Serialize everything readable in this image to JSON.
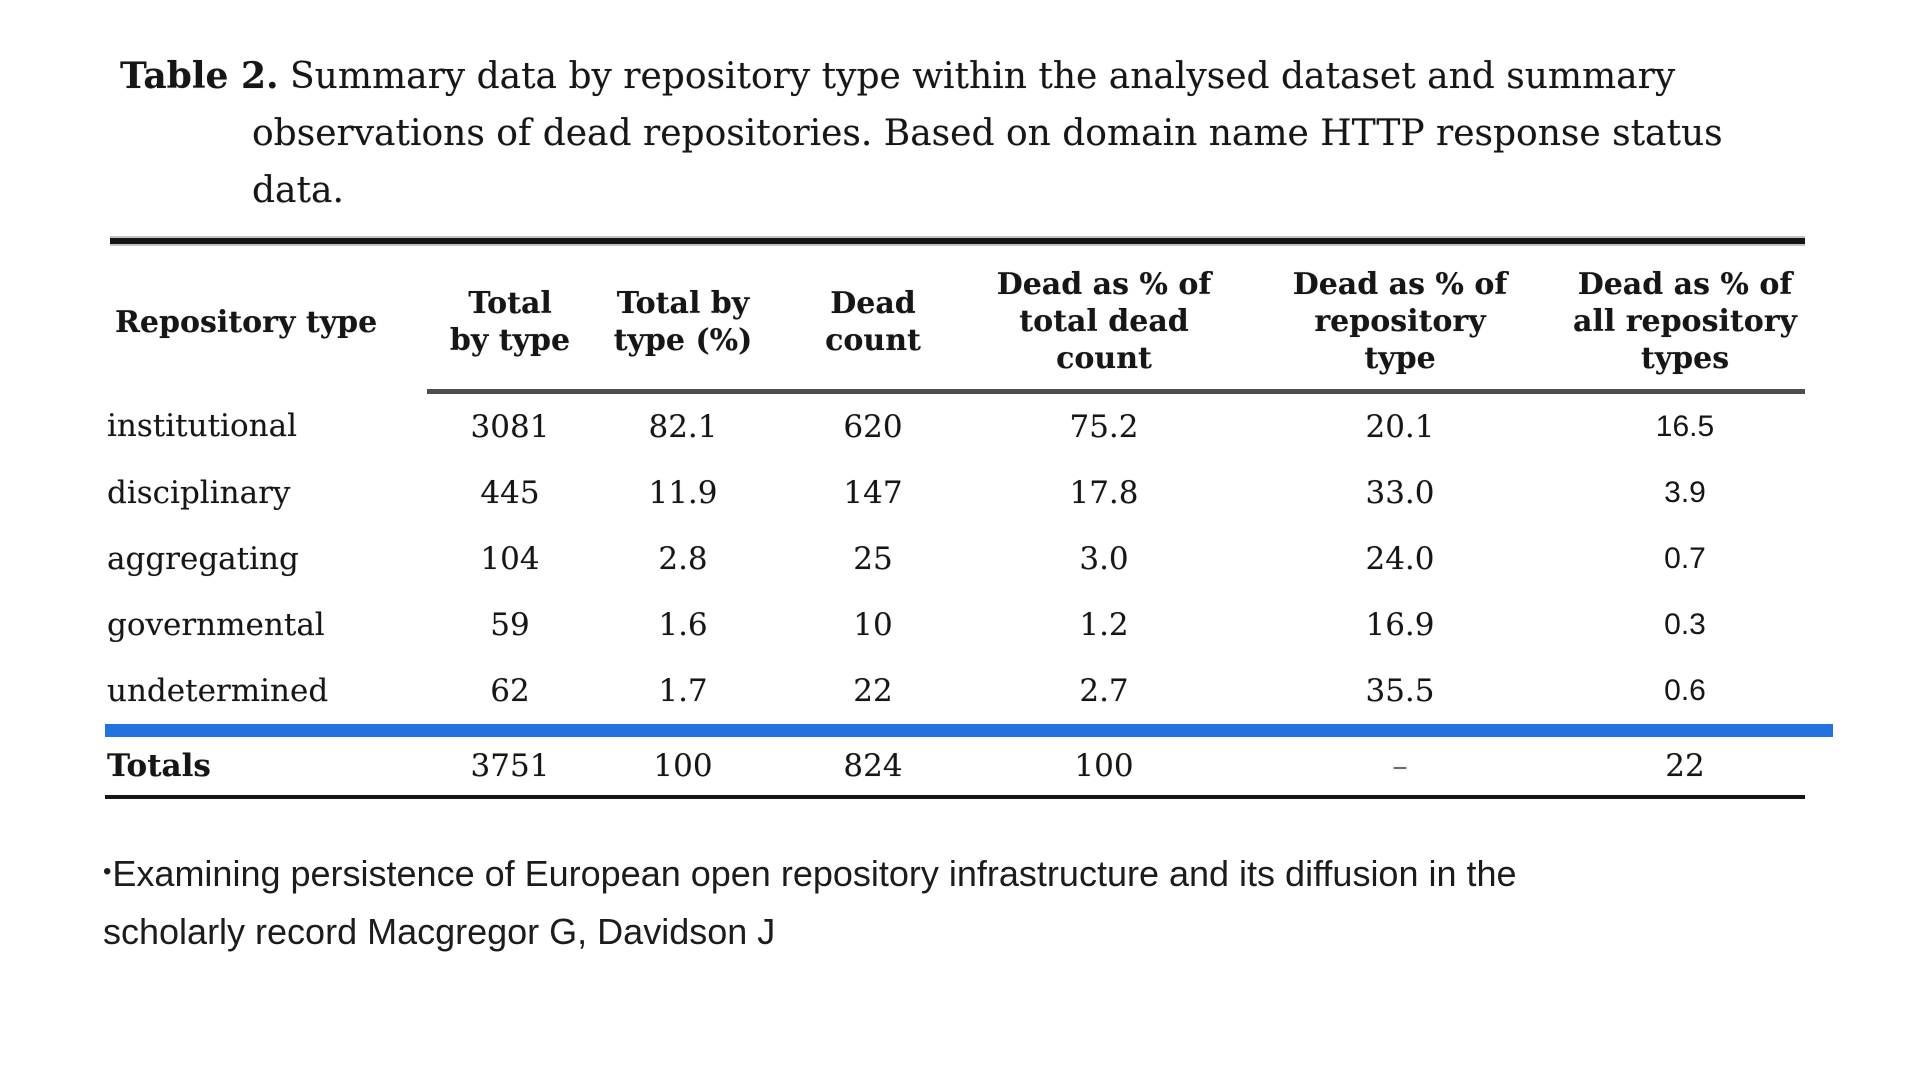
{
  "caption": {
    "label": "Table 2.",
    "line1": "Summary data by repository type within the analysed dataset and summary",
    "line2": "observations of dead repositories. Based on domain name HTTP response status",
    "line3": "data."
  },
  "table": {
    "accent_color": "#2273e0",
    "na_symbol": "–",
    "columns": [
      {
        "label": "Repository type",
        "lines": [
          "Repository type"
        ]
      },
      {
        "label": "Total by type",
        "lines": [
          "Total",
          "by type"
        ]
      },
      {
        "label": "Total by type (%)",
        "lines": [
          "Total by",
          "type (%)"
        ]
      },
      {
        "label": "Dead count",
        "lines": [
          "Dead",
          "count"
        ]
      },
      {
        "label": "Dead as % of total dead count",
        "lines": [
          "Dead as % of",
          "total dead",
          "count"
        ]
      },
      {
        "label": "Dead as % of repository type",
        "lines": [
          "Dead as % of",
          "repository",
          "type"
        ]
      },
      {
        "label": "Dead as % of all repository types",
        "lines": [
          "Dead as % of",
          "all repository",
          "types"
        ],
        "edited": true
      }
    ],
    "rows": [
      {
        "cells": [
          "institutional",
          "3081",
          "82.1",
          "620",
          "75.2",
          "20.1",
          "16.5"
        ]
      },
      {
        "cells": [
          "disciplinary",
          "445",
          "11.9",
          "147",
          "17.8",
          "33.0",
          "3.9"
        ]
      },
      {
        "cells": [
          "aggregating",
          "104",
          "2.8",
          "25",
          "3.0",
          "24.0",
          "0.7"
        ]
      },
      {
        "cells": [
          "governmental",
          "59",
          "1.6",
          "10",
          "1.2",
          "16.9",
          "0.3"
        ]
      },
      {
        "cells": [
          "undetermined",
          "62",
          "1.7",
          "22",
          "2.7",
          "35.5",
          "0.6"
        ]
      }
    ],
    "totals": {
      "cells": [
        "Totals",
        "3751",
        "100",
        "824",
        "100",
        "–",
        "22"
      ]
    }
  },
  "footer": {
    "bullet": "•",
    "line1": "Examining persistence of European open repository infrastructure and its diffusion in the",
    "line2": "scholarly record Macgregor G, Davidson J"
  }
}
